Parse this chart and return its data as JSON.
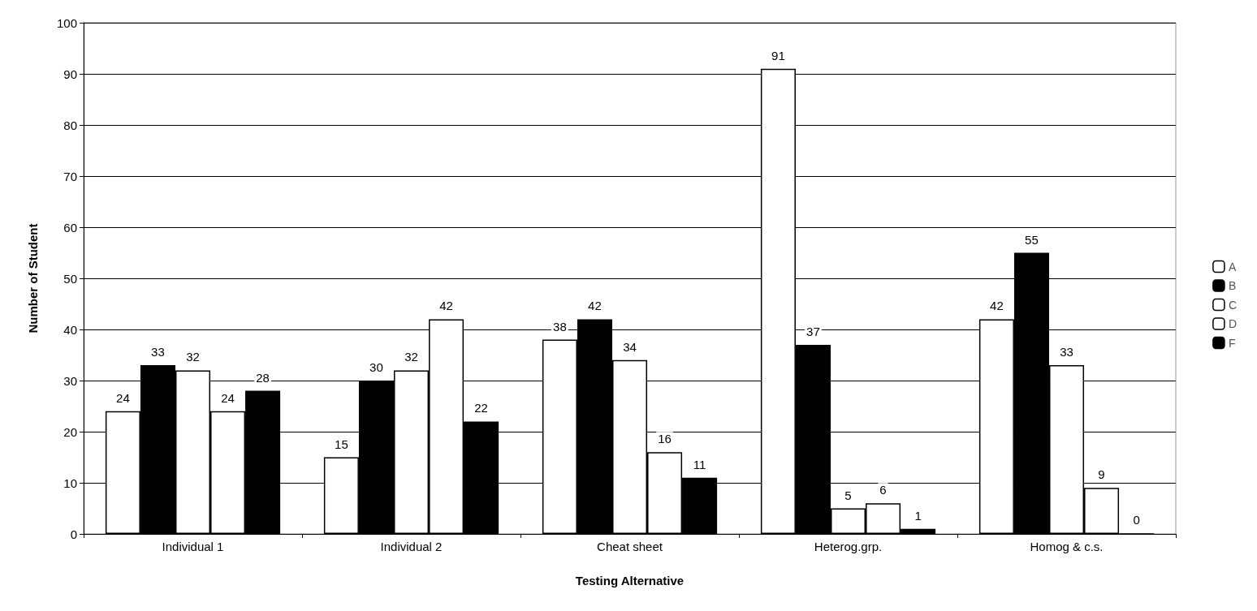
{
  "chart_data": {
    "type": "bar",
    "xlabel": "Testing Alternative",
    "ylabel": "Number of Student",
    "categories": [
      "Individual 1",
      "Individual 2",
      "Cheat sheet",
      "Heterog.grp.",
      "Homog & c.s."
    ],
    "series": [
      {
        "name": "A",
        "color": "#ffffff",
        "values": [
          24,
          15,
          38,
          91,
          42
        ]
      },
      {
        "name": "B",
        "color": "#000000",
        "values": [
          33,
          30,
          42,
          37,
          55
        ]
      },
      {
        "name": "C",
        "color": "#ffffff",
        "values": [
          32,
          32,
          34,
          5,
          33
        ]
      },
      {
        "name": "D",
        "color": "#ffffff",
        "values": [
          24,
          42,
          16,
          6,
          9
        ]
      },
      {
        "name": "F",
        "color": "#000000",
        "values": [
          28,
          22,
          11,
          1,
          0
        ]
      }
    ],
    "ylim": [
      0,
      100
    ],
    "yticks": [
      0,
      10,
      20,
      30,
      40,
      50,
      60,
      70,
      80,
      90,
      100
    ],
    "grid": "y",
    "legend": "right",
    "data_labels": true
  }
}
